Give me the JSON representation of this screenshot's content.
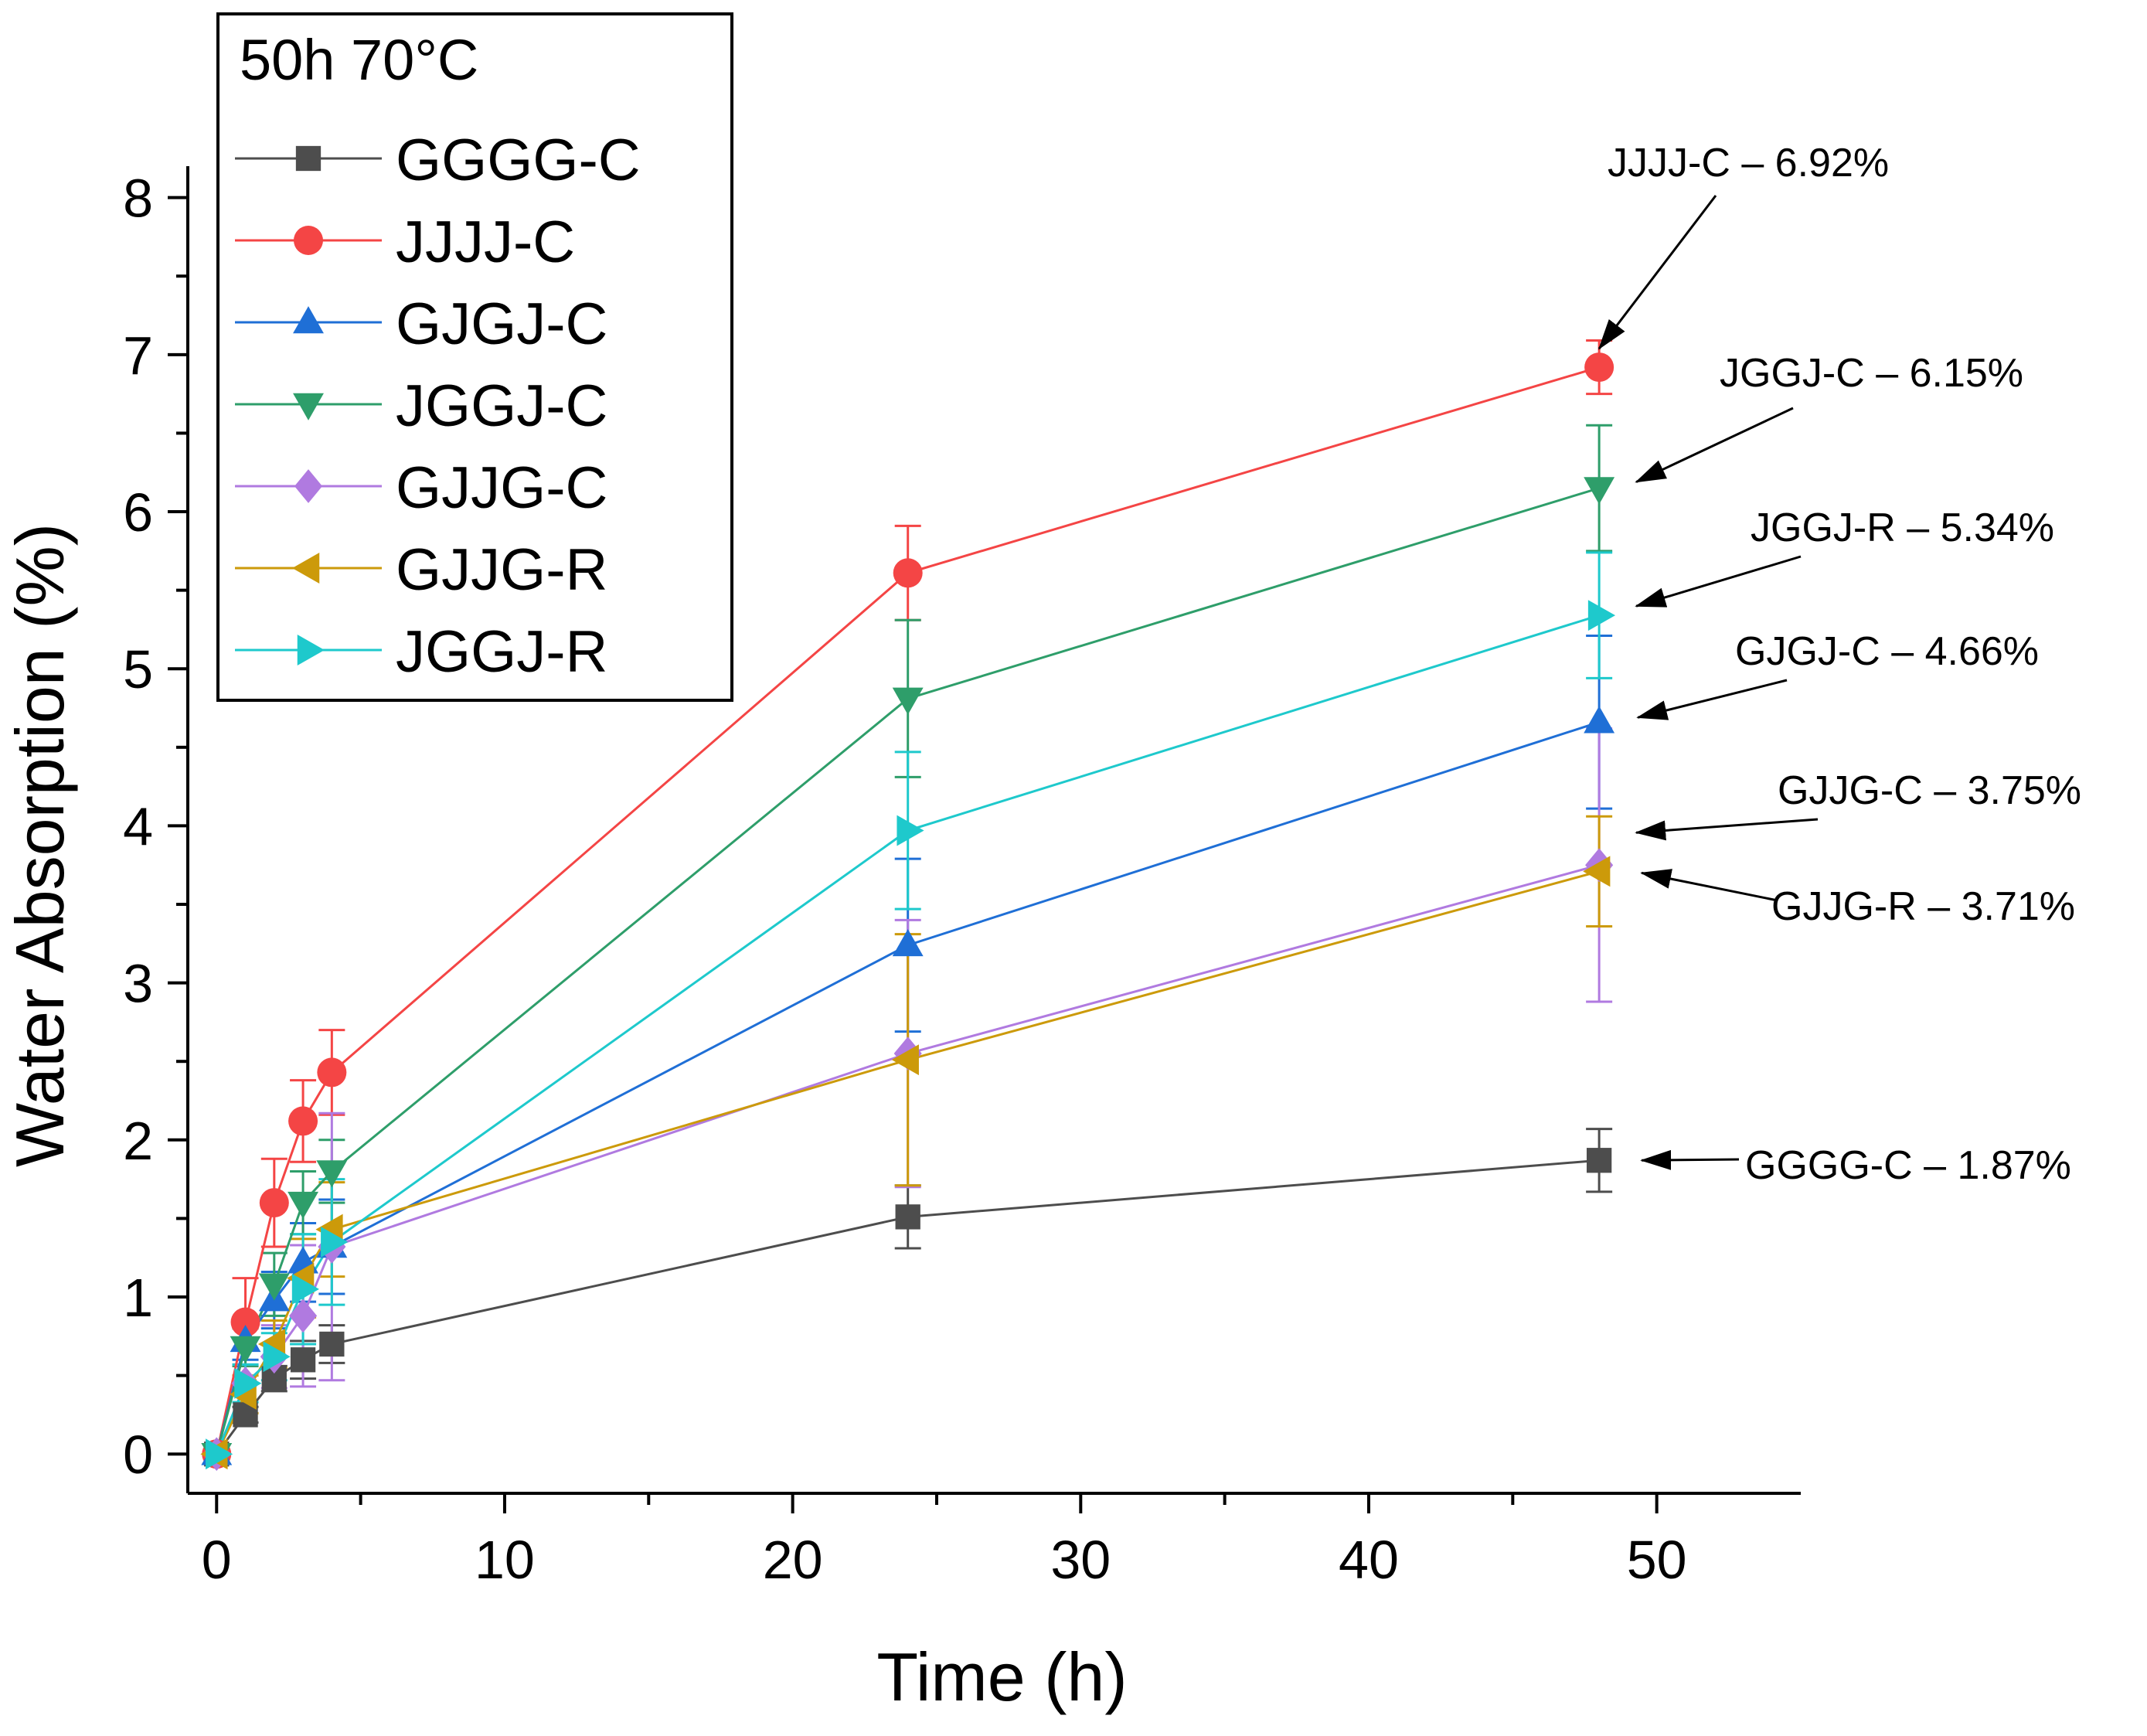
{
  "chart_data": {
    "type": "line",
    "title": "",
    "xlabel": "Time (h)",
    "ylabel": "Water Absorption (%)",
    "xlim": [
      -1,
      55
    ],
    "ylim": [
      -0.25,
      8.2
    ],
    "xticks": [
      0,
      10,
      20,
      30,
      40,
      50
    ],
    "yticks": [
      0,
      1,
      2,
      3,
      4,
      5,
      6,
      7,
      8
    ],
    "grid": false,
    "legend": {
      "title": "50h 70°C",
      "placement": "top-left"
    },
    "x": [
      0,
      1,
      2,
      3,
      4,
      24,
      48
    ],
    "series": [
      {
        "name": "GGGG-C",
        "color": "#4d4d4d",
        "marker": "square",
        "values": [
          0,
          0.25,
          0.48,
          0.6,
          0.7,
          1.51,
          1.87
        ],
        "errors": [
          0,
          0.05,
          0.08,
          0.12,
          0.12,
          0.2,
          0.2
        ]
      },
      {
        "name": "JJJJ-C",
        "color": "#f44545",
        "marker": "circle",
        "values": [
          0,
          0.84,
          1.6,
          2.12,
          2.43,
          5.61,
          6.92
        ],
        "errors": [
          0,
          0.28,
          0.28,
          0.26,
          0.27,
          0.3,
          0.17
        ]
      },
      {
        "name": "GJGJ-C",
        "color": "#1f6fd6",
        "marker": "triangle-up",
        "values": [
          0,
          0.72,
          0.98,
          1.22,
          1.32,
          3.24,
          4.66
        ],
        "errors": [
          0,
          0.12,
          0.18,
          0.25,
          0.3,
          0.55,
          0.55
        ]
      },
      {
        "name": "JGGJ-C",
        "color": "#2e9e6a",
        "marker": "triangle-down",
        "values": [
          0,
          0.68,
          1.08,
          1.6,
          1.8,
          4.81,
          6.15
        ],
        "errors": [
          0,
          0.12,
          0.2,
          0.2,
          0.2,
          0.5,
          0.4
        ]
      },
      {
        "name": "GJJG-C",
        "color": "#b07ae0",
        "marker": "diamond",
        "values": [
          0,
          0.45,
          0.62,
          0.88,
          1.32,
          2.55,
          3.75
        ],
        "errors": [
          0,
          0.12,
          0.2,
          0.45,
          0.85,
          0.85,
          0.87
        ]
      },
      {
        "name": "GJJG-R",
        "color": "#cc9a0a",
        "marker": "triangle-left",
        "values": [
          0,
          0.38,
          0.7,
          1.12,
          1.43,
          2.51,
          3.71
        ],
        "errors": [
          0,
          0.12,
          0.15,
          0.25,
          0.3,
          0.8,
          0.35
        ]
      },
      {
        "name": "JGGJ-R",
        "color": "#1ec9cc",
        "marker": "triangle-right",
        "values": [
          0,
          0.45,
          0.62,
          1.05,
          1.35,
          3.97,
          5.34
        ],
        "errors": [
          0,
          0.12,
          0.15,
          0.35,
          0.4,
          0.5,
          0.4
        ]
      }
    ],
    "annotations": [
      {
        "series": "JJJJ-C",
        "label": "JJJJ-C – 6.92%"
      },
      {
        "series": "JGGJ-C",
        "label": "JGGJ-C – 6.15%"
      },
      {
        "series": "JGGJ-R",
        "label": "JGGJ-R – 5.34%"
      },
      {
        "series": "GJGJ-C",
        "label": "GJGJ-C – 4.66%"
      },
      {
        "series": "GJJG-C",
        "label": "GJJG-C – 3.75%"
      },
      {
        "series": "GJJG-R",
        "label": "GJJG-R – 3.71%"
      },
      {
        "series": "GGGG-C",
        "label": "GGGG-C – 1.87%"
      }
    ]
  }
}
